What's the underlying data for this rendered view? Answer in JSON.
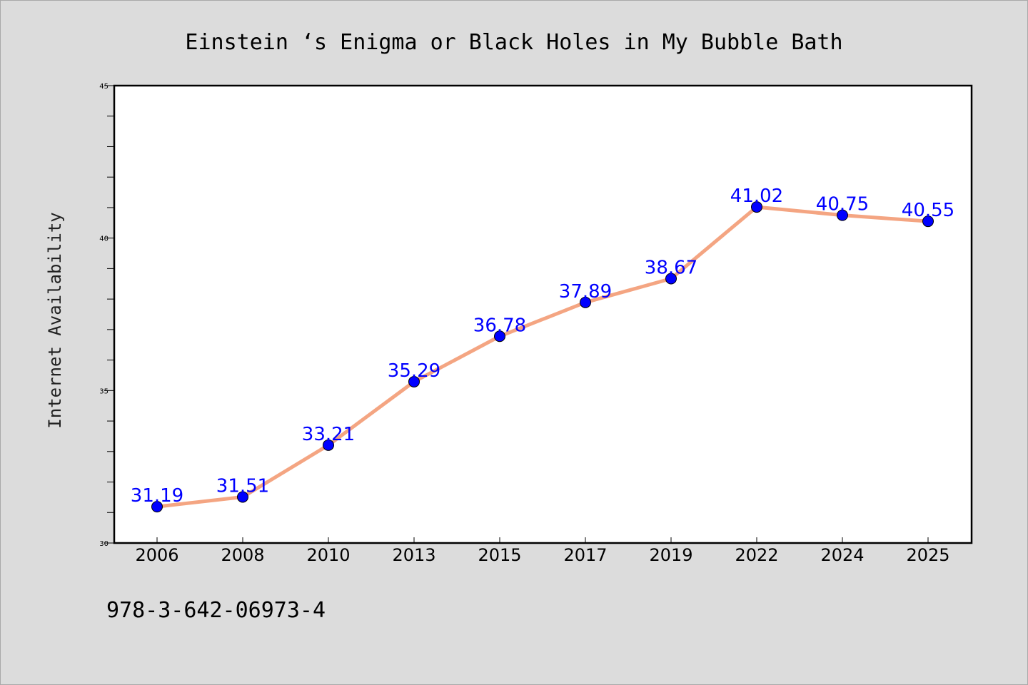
{
  "chart_data": {
    "type": "line",
    "title": "Einstein ‘s Enigma or Black Holes in My Bubble Bath",
    "xlabel": "",
    "ylabel": "Internet Availability",
    "categories": [
      "2006",
      "2008",
      "2010",
      "2013",
      "2015",
      "2017",
      "2019",
      "2022",
      "2024",
      "2025"
    ],
    "values": [
      31.19,
      31.51,
      33.21,
      35.29,
      36.78,
      37.89,
      38.67,
      41.02,
      40.75,
      40.55
    ],
    "value_labels": [
      "31.19",
      "31.51",
      "33.21",
      "35.29",
      "36.78",
      "37.89",
      "38.67",
      "41.02",
      "40.75",
      "40.55"
    ],
    "ylim": [
      30,
      45
    ],
    "yticks": [
      "30",
      "35",
      "40",
      "45"
    ],
    "grid": false,
    "line_color": "#f4a582",
    "marker_color": "#0000ff",
    "label_color": "#0000ff",
    "background": "#dcdcdc",
    "plot_background": "#ffffff"
  },
  "footer": {
    "isbn": "978-3-642-06973-4"
  }
}
